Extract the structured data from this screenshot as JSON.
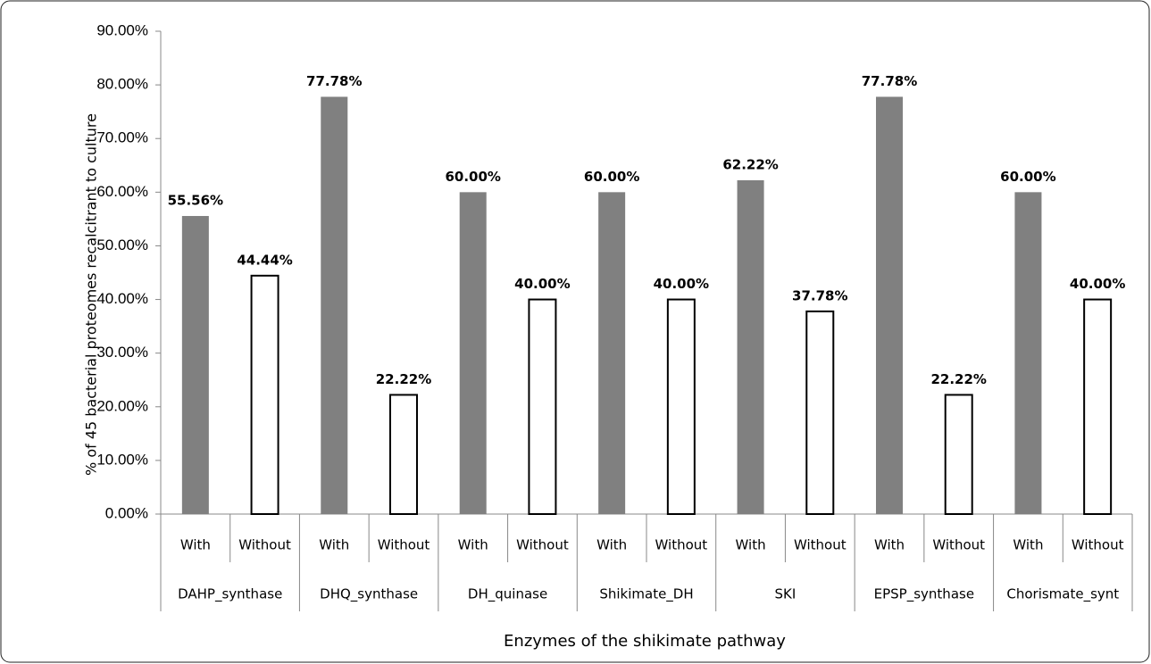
{
  "chart_data": {
    "type": "bar",
    "y_label": "% of 45 bacterial proteomes recalcitrant to culture",
    "x_label": "Enzymes of the shikimate pathway",
    "groups": [
      "DAHP_synthase",
      "DHQ_synthase",
      "DH_quinase",
      "Shikimate_DH",
      "SKI",
      "EPSP_synthase",
      "Chorismate_synt"
    ],
    "categories": [
      "With",
      "Without",
      "With",
      "Without",
      "With",
      "Without",
      "With",
      "Without",
      "With",
      "Without",
      "With",
      "Without",
      "With",
      "Without"
    ],
    "values": [
      55.56,
      44.44,
      77.78,
      22.22,
      60,
      40,
      60,
      40,
      62.22,
      37.78,
      77.78,
      22.22,
      60,
      40
    ],
    "value_labels": [
      "55.56%",
      "44.44%",
      "77.78%",
      "22.22%",
      "60.00%",
      "40.00%",
      "60.00%",
      "40.00%",
      "62.22%",
      "37.78%",
      "77.78%",
      "22.22%",
      "60.00%",
      "40.00%"
    ],
    "bar_fills": [
      "#808080",
      "#ffffff"
    ],
    "ylim": [
      0,
      90
    ],
    "yticks": [
      {
        "value": 0,
        "label": "0.00%"
      },
      {
        "value": 10,
        "label": "10.00%"
      },
      {
        "value": 20,
        "label": "20.00%"
      },
      {
        "value": 30,
        "label": "30.00%"
      },
      {
        "value": 40,
        "label": "40.00%"
      },
      {
        "value": 50,
        "label": "50.00%"
      },
      {
        "value": 60,
        "label": "60.00%"
      },
      {
        "value": 70,
        "label": "70.00%"
      },
      {
        "value": 80,
        "label": "80.00%"
      },
      {
        "value": 90,
        "label": "90.00%"
      }
    ]
  }
}
